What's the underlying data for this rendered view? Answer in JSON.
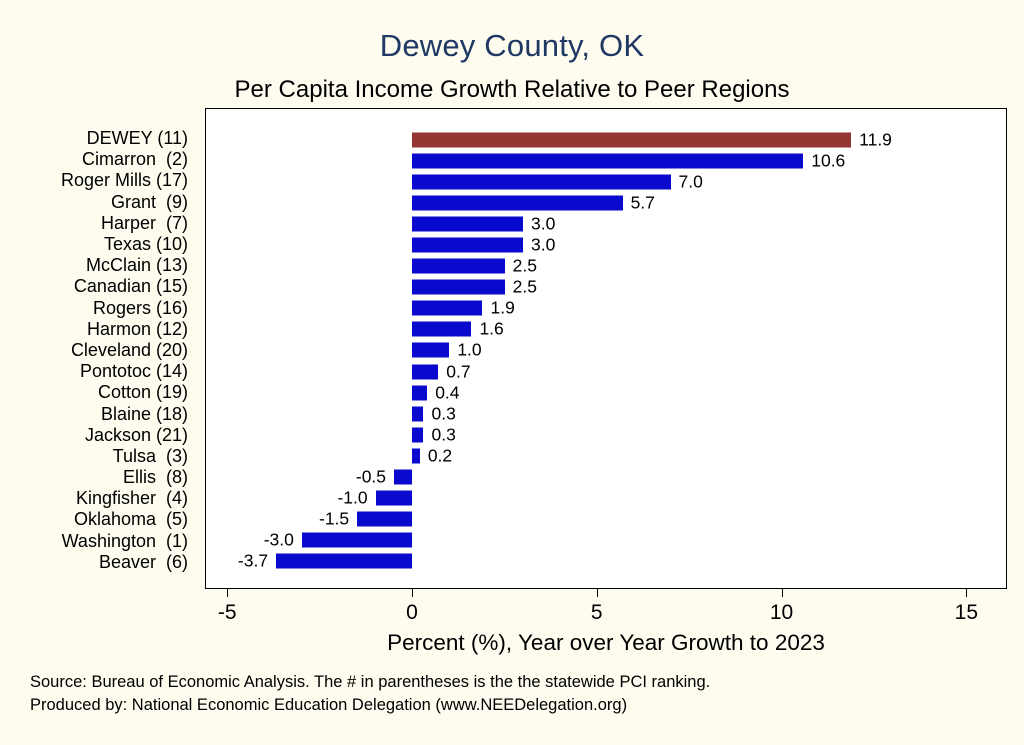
{
  "title": "Dewey County, OK",
  "subtitle": "Per Capita Income Growth Relative to Peer Regions",
  "notes": {
    "source": "Source: Bureau of Economic Analysis. The # in parentheses is the the statewide PCI ranking.",
    "produced_by": "Produced by: National Economic Education Delegation (www.NEEDelegation.org)"
  },
  "chart_data": {
    "type": "bar",
    "orientation": "horizontal",
    "title": "Dewey County, OK",
    "subtitle": "Per Capita Income Growth Relative to Peer Regions",
    "xlabel": "Percent (%), Year over Year Growth to 2023",
    "xlim": [
      -5.6,
      16.1
    ],
    "xticks": [
      -5,
      0,
      5,
      10,
      15
    ],
    "grid": false,
    "legend": "none",
    "categories": [
      "DEWEY (11)",
      "Cimarron  (2)",
      "Roger Mills (17)",
      "Grant  (9)",
      "Harper  (7)",
      "Texas (10)",
      "McClain (13)",
      "Canadian (15)",
      "Rogers (16)",
      "Harmon (12)",
      "Cleveland (20)",
      "Pontotoc (14)",
      "Cotton (19)",
      "Blaine (18)",
      "Jackson (21)",
      "Tulsa  (3)",
      "Ellis  (8)",
      "Kingfisher  (4)",
      "Oklahoma  (5)",
      "Washington  (1)",
      "Beaver  (6)"
    ],
    "values": [
      11.9,
      10.6,
      7.0,
      5.7,
      3.0,
      3.0,
      2.5,
      2.5,
      1.9,
      1.6,
      1.0,
      0.7,
      0.4,
      0.3,
      0.3,
      0.2,
      -0.5,
      -1.0,
      -1.5,
      -3.0,
      -3.7
    ],
    "value_labels": [
      "11.9",
      "10.6",
      "7.0",
      "5.7",
      "3.0",
      "3.0",
      "2.5",
      "2.5",
      "1.9",
      "1.6",
      "1.0",
      "0.7",
      "0.4",
      "0.3",
      "0.3",
      "0.2",
      "-0.5",
      "-1.0",
      "-1.5",
      "-3.0",
      "-3.7"
    ],
    "colors": {
      "default": "#0A0ACF",
      "highlight": "#963634"
    },
    "highlight_index": 0
  }
}
